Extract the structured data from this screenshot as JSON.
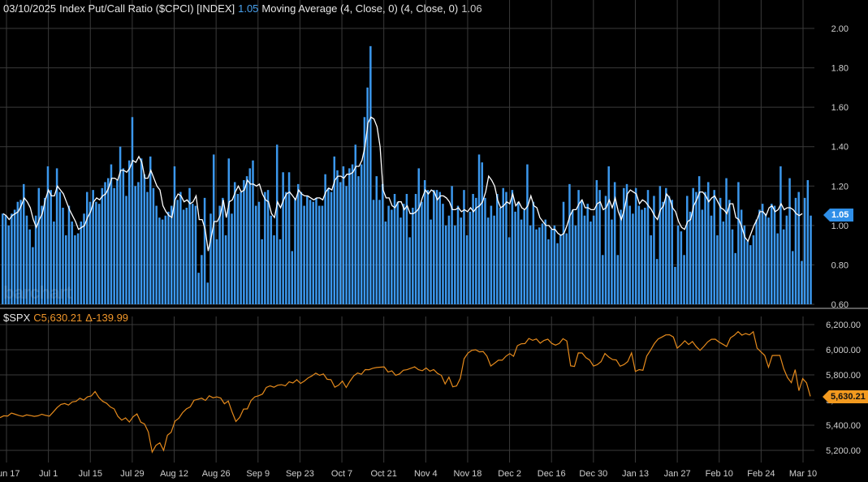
{
  "header": {
    "date": "03/10/2025",
    "symbol_name": "Index Put/Call Ratio ($CPCI) [INDEX]",
    "symbol_value": "1.05",
    "ma_label": "Moving Average (4, Close, 0)  (4, Close, 0)",
    "ma_value": "1.06"
  },
  "lower_header": {
    "symbol": "$SPX",
    "close": "C5,630.21",
    "change": "Δ-139.99"
  },
  "tags": {
    "upper": "1.05",
    "lower": "5,630.21"
  },
  "watermark": "barchart",
  "colors": {
    "bar": "#3b97ec",
    "ma_line": "#ffffff",
    "spx_line": "#e58a1c",
    "grid": "#3a3a3a",
    "axis_text": "#cfcfcf",
    "blue_text": "#4aa3f0",
    "orange_text": "#f0962a"
  },
  "chart_data": [
    {
      "type": "bar",
      "title": "Index Put/Call Ratio ($CPCI) [INDEX]",
      "ylim": [
        0.6,
        2.0
      ],
      "yticks": [
        "2.00",
        "1.80",
        "1.60",
        "1.40",
        "1.20",
        "1.00",
        "0.80",
        "0.60"
      ],
      "ytick_values": [
        2.0,
        1.8,
        1.6,
        1.4,
        1.2,
        1.0,
        0.8,
        0.6
      ],
      "series": [
        {
          "name": "Index Put/Call Ratio ($CPCI) [INDEX]",
          "values": [
            1.06,
            1.05,
            1.0,
            1.06,
            1.08,
            1.12,
            1.13,
            1.21,
            1.05,
            0.98,
            0.89,
            1.05,
            1.19,
            1.1,
            1.14,
            1.3,
            1.18,
            1.02,
            1.29,
            1.17,
            1.09,
            0.95,
            1.1,
            1.02,
            0.95,
            0.96,
            1.02,
            1.06,
            1.17,
            1.12,
            1.18,
            1.12,
            1.11,
            1.19,
            1.22,
            1.24,
            1.31,
            1.19,
            1.23,
            1.4,
            1.29,
            1.15,
            1.33,
            1.55,
            1.2,
            1.22,
            1.34,
            1.26,
            1.17,
            1.35,
            1.19,
            1.1,
            1.04,
            1.03,
            1.05,
            1.07,
            1.1,
            1.3,
            1.13,
            1.17,
            1.08,
            1.09,
            1.19,
            1.11,
            1.1,
            0.76,
            0.85,
            1.14,
            0.71,
            1.06,
            1.36,
            0.93,
            1.1,
            1.14,
            0.95,
            1.34,
            1.06,
            1.22,
            1.16,
            1.17,
            1.23,
            1.25,
            1.29,
            1.33,
            1.1,
            1.12,
            0.93,
            1.17,
            1.18,
            1.05,
            0.95,
            1.41,
            0.93,
            1.27,
            1.17,
            1.27,
            0.87,
            1.14,
            1.21,
            1.17,
            1.1,
            1.15,
            1.13,
            1.12,
            1.14,
            1.1,
            1.1,
            1.26,
            1.19,
            1.17,
            1.35,
            1.28,
            1.22,
            1.3,
            1.2,
            1.29,
            1.31,
            1.41,
            1.25,
            1.31,
            1.55,
            1.7,
            1.91,
            1.13,
            1.25,
            1.13,
            1.21,
            1.02,
            1.1,
            1.08,
            1.16,
            1.12,
            1.04,
            1.11,
            1.16,
            0.94,
            1.09,
            1.16,
            1.29,
            1.12,
            1.23,
            1.18,
            1.03,
            1.18,
            1.18,
            1.17,
            1.11,
            1.0,
            1.05,
            1.2,
            1.0,
            1.1,
            1.04,
            1.18,
            0.95,
            1.07,
            1.16,
            1.14,
            1.36,
            1.32,
            1.14,
            1.04,
            1.1,
            1.05,
            1.16,
            1.09,
            1.19,
            1.17,
            0.94,
            1.18,
            1.07,
            1.12,
            1.03,
            1.08,
            1.31,
            1.0,
            1.12,
            0.98,
            0.99,
            1.01,
            1.03,
            0.93,
            0.98,
            1.0,
            0.91,
            0.95,
            1.12,
            0.96,
            1.21,
            1.08,
            1.0,
            1.18,
            1.13,
            1.05,
            1.11,
            1.02,
            1.05,
            1.23,
            1.18,
            0.85,
            1.15,
            1.3,
            1.03,
            1.22,
            0.85,
            1.08,
            1.19,
            1.21,
            1.1,
            1.06,
            1.19,
            1.1,
            1.08,
            1.09,
            1.18,
            0.95,
            1.15,
            0.83,
            1.2,
            1.12,
            1.19,
            1.15,
            1.13,
            0.79,
            1.0,
            0.97,
            0.85,
            1.15,
            1.07,
            1.19,
            1.17,
            1.25,
            1.08,
            1.17,
            1.22,
            1.05,
            1.18,
            0.95,
            1.14,
            1.02,
            1.24,
            1.13,
            0.98,
            0.86,
            1.22,
            1.08,
            1.0,
            0.92,
            0.9,
            0.95,
            1.03,
            1.08,
            1.11,
            1.06,
            1.04,
            1.11,
            1.1,
            0.96,
            1.3,
            0.98,
            1.05,
            1.24,
            0.87,
            1.14,
            1.17,
            0.82,
            1.14,
            1.23,
            1.05
          ]
        },
        {
          "name": "Moving Average (4, Close, 0)",
          "values": [
            1.06,
            1.05,
            1.03,
            1.05,
            1.06,
            1.07,
            1.1,
            1.14,
            1.12,
            1.09,
            1.03,
            0.99,
            1.03,
            1.06,
            1.13,
            1.18,
            1.15,
            1.15,
            1.2,
            1.18,
            1.16,
            1.12,
            1.08,
            1.05,
            1.02,
            0.98,
            0.99,
            1.0,
            1.04,
            1.07,
            1.12,
            1.14,
            1.13,
            1.15,
            1.16,
            1.19,
            1.24,
            1.24,
            1.23,
            1.28,
            1.28,
            1.27,
            1.29,
            1.33,
            1.32,
            1.35,
            1.32,
            1.24,
            1.24,
            1.28,
            1.24,
            1.2,
            1.18,
            1.1,
            1.07,
            1.05,
            1.04,
            1.13,
            1.16,
            1.15,
            1.12,
            1.13,
            1.11,
            1.12,
            1.15,
            1.03,
            1.03,
            0.98,
            0.87,
            0.94,
            1.02,
            1.02,
            1.05,
            1.13,
            1.04,
            1.12,
            1.13,
            1.17,
            1.2,
            1.17,
            1.18,
            1.23,
            1.21,
            1.21,
            1.2,
            1.21,
            1.16,
            1.13,
            1.12,
            1.06,
            1.04,
            1.12,
            1.09,
            1.13,
            1.16,
            1.17,
            1.15,
            1.13,
            1.18,
            1.16,
            1.15,
            1.15,
            1.14,
            1.13,
            1.14,
            1.14,
            1.13,
            1.17,
            1.19,
            1.18,
            1.23,
            1.25,
            1.25,
            1.24,
            1.26,
            1.26,
            1.27,
            1.3,
            1.3,
            1.33,
            1.4,
            1.52,
            1.55,
            1.54,
            1.5,
            1.4,
            1.18,
            1.14,
            1.14,
            1.1,
            1.09,
            1.12,
            1.12,
            1.08,
            1.1,
            1.06,
            1.06,
            1.07,
            1.09,
            1.14,
            1.18,
            1.16,
            1.18,
            1.17,
            1.13,
            1.15,
            1.15,
            1.14,
            1.12,
            1.08,
            1.08,
            1.09,
            1.07,
            1.08,
            1.07,
            1.09,
            1.07,
            1.09,
            1.1,
            1.12,
            1.17,
            1.25,
            1.23,
            1.2,
            1.13,
            1.09,
            1.1,
            1.12,
            1.11,
            1.16,
            1.1,
            1.12,
            1.09,
            1.08,
            1.1,
            1.15,
            1.1,
            1.09,
            1.04,
            1.02,
            1.0,
            1.0,
            0.98,
            0.98,
            0.96,
            0.95,
            0.96,
            1.0,
            1.05,
            1.08,
            1.08,
            1.11,
            1.13,
            1.09,
            1.09,
            1.08,
            1.08,
            1.11,
            1.12,
            1.08,
            1.09,
            1.13,
            1.09,
            1.14,
            1.07,
            1.03,
            1.08,
            1.16,
            1.18,
            1.17,
            1.16,
            1.11,
            1.13,
            1.12,
            1.1,
            1.08,
            1.05,
            1.03,
            1.08,
            1.1,
            1.16,
            1.14,
            1.09,
            1.07,
            1.02,
            0.99,
            0.98,
            1.02,
            1.03,
            1.1,
            1.13,
            1.17,
            1.17,
            1.15,
            1.12,
            1.14,
            1.15,
            1.12,
            1.09,
            1.08,
            1.06,
            1.11,
            1.11,
            1.04,
            1.03,
            0.99,
            0.94,
            0.92,
            0.96,
            1.0,
            1.03,
            1.07,
            1.07,
            1.05,
            1.09,
            1.1,
            1.07,
            1.08,
            1.11,
            1.08,
            1.09,
            1.09,
            1.08,
            1.06,
            1.05,
            1.06
          ]
        }
      ]
    },
    {
      "type": "line",
      "title": "$SPX",
      "ylim": [
        5100,
        6300
      ],
      "yticks": [
        "6,200.00",
        "6,000.00",
        "5,800.00",
        "5,600.00",
        "5,400.00",
        "5,200.00"
      ],
      "ytick_values": [
        6200,
        6000,
        5800,
        5600,
        5400,
        5200
      ],
      "series": [
        {
          "name": "$SPX",
          "values": [
            5460,
            5475,
            5473,
            5497,
            5487,
            5477,
            5470,
            5482,
            5477,
            5470,
            5475,
            5487,
            5478,
            5472,
            5505,
            5540,
            5565,
            5572,
            5560,
            5585,
            5590,
            5615,
            5600,
            5625,
            5633,
            5668,
            5620,
            5590,
            5575,
            5545,
            5530,
            5470,
            5440,
            5458,
            5425,
            5468,
            5490,
            5424,
            5410,
            5346,
            5186,
            5240,
            5260,
            5200,
            5320,
            5344,
            5432,
            5455,
            5500,
            5530,
            5546,
            5598,
            5606,
            5615,
            5597,
            5634,
            5618,
            5625,
            5616,
            5570,
            5592,
            5506,
            5430,
            5462,
            5528,
            5530,
            5596,
            5626,
            5634,
            5648,
            5700,
            5713,
            5702,
            5718,
            5722,
            5713,
            5745,
            5736,
            5762,
            5732,
            5751,
            5776,
            5792,
            5814,
            5797,
            5808,
            5765,
            5762,
            5702,
            5719,
            5751,
            5700,
            5751,
            5792,
            5815,
            5805,
            5842,
            5841,
            5853,
            5859,
            5861,
            5864,
            5823,
            5832,
            5797,
            5808,
            5837,
            5841,
            5853,
            5864,
            5841,
            5833,
            5855,
            5830,
            5842,
            5812,
            5797,
            5728,
            5782,
            5705,
            5712,
            5772,
            5929,
            5973,
            5995,
            6000,
            5983,
            5985,
            5949,
            5870,
            5893,
            5917,
            5917,
            5949,
            5969,
            5948,
            6032,
            6047,
            6049,
            6090,
            6075,
            6086,
            6052,
            6074,
            6084,
            6051,
            6037,
            6050,
            6088,
            6069,
            5872,
            5867,
            5975,
            5974,
            5937,
            5918,
            5870,
            5881,
            5906,
            5970,
            5942,
            5922,
            5919,
            5869,
            5882,
            5906,
            5975,
            5827,
            5842,
            5837,
            5950,
            5997,
            6049,
            6086,
            6101,
            6118,
            6119,
            6101,
            6012,
            6039,
            6071,
            6041,
            6065,
            6025,
            5995,
            6026,
            6062,
            6083,
            6084,
            6061,
            6044,
            6026,
            6094,
            6114,
            6144,
            6116,
            6129,
            6118,
            6143,
            6013,
            5983,
            5955,
            5861,
            5954,
            5955,
            5955,
            5849,
            5778,
            5738,
            5842,
            5675,
            5770,
            5737,
            5630
          ]
        }
      ]
    }
  ],
  "x_axis": {
    "labels": [
      "Jun 17",
      "Jul 1",
      "Jul 15",
      "Jul 29",
      "Aug 12",
      "Aug 26",
      "Sep 9",
      "Sep 23",
      "Oct 7",
      "Oct 21",
      "Nov 4",
      "Nov 18",
      "Dec 2",
      "Dec 16",
      "Dec 30",
      "Jan 13",
      "Jan 27",
      "Feb 10",
      "Feb 24",
      "Mar 10"
    ]
  }
}
